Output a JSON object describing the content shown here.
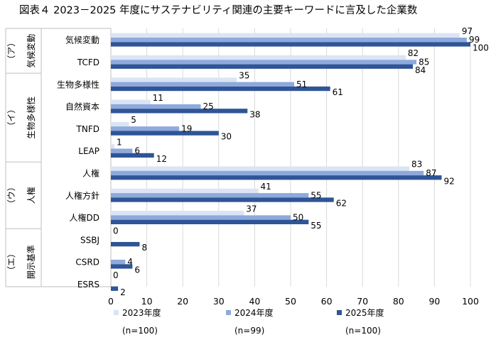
{
  "chart_data": {
    "type": "bar",
    "orientation": "horizontal",
    "title": "図表４ 2023－2025 年度にサステナビリティ関連の主要キーワードに言及した企業数",
    "groups": [
      {
        "label": "（ア）",
        "name": "気候変動",
        "categories": [
          "気候変動",
          "TCFD"
        ]
      },
      {
        "label": "（イ）",
        "name": "生物多様性",
        "categories": [
          "生物多様性",
          "自然資本",
          "TNFD",
          "LEAP"
        ]
      },
      {
        "label": "（ウ）",
        "name": "人権",
        "categories": [
          "人権",
          "人権方針",
          "人権DD"
        ]
      },
      {
        "label": "（エ）",
        "name": "開示基準",
        "categories": [
          "SSBJ",
          "CSRD",
          "ESRS"
        ]
      }
    ],
    "categories": [
      "気候変動",
      "TCFD",
      "生物多様性",
      "自然資本",
      "TNFD",
      "LEAP",
      "人権",
      "人権方針",
      "人権DD",
      "SSBJ",
      "CSRD",
      "ESRS"
    ],
    "series": [
      {
        "name": "2023年度",
        "n_label": "(n=100)",
        "color": "#dbe4f4",
        "values": [
          97,
          82,
          35,
          11,
          5,
          1,
          83,
          41,
          37,
          0,
          null,
          0
        ]
      },
      {
        "name": "2024年度",
        "n_label": "(n=99)",
        "color": "#8ea9db",
        "values": [
          99,
          85,
          51,
          25,
          19,
          6,
          87,
          55,
          50,
          null,
          4,
          null
        ]
      },
      {
        "name": "2025年度",
        "n_label": "(n=100)",
        "color": "#2f5597",
        "values": [
          100,
          84,
          61,
          38,
          30,
          12,
          92,
          62,
          55,
          8,
          6,
          2
        ]
      }
    ],
    "xlim": [
      0,
      100
    ],
    "xticks": [
      0,
      10,
      20,
      30,
      40,
      50,
      60,
      70,
      80,
      90,
      100
    ],
    "grid": true,
    "legend_position": "bottom"
  }
}
